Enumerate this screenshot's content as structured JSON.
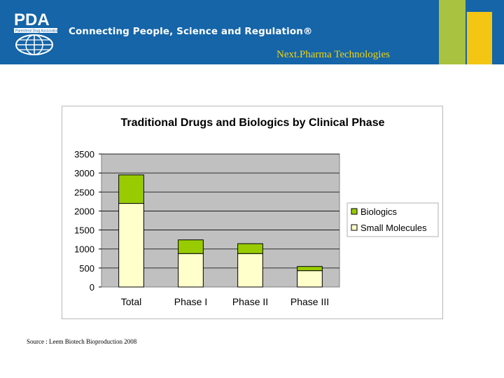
{
  "header": {
    "tagline": "Connecting People, Science and Regulation®",
    "company": "Next.Pharma Technologies",
    "logo_text": "PDA",
    "logo_subtext": "Parenteral Drug Association",
    "colors": {
      "bar": "#1565a8",
      "company_text": "#f4d20a",
      "stripe_green": "#a9c23f",
      "stripe_yellow": "#f3c614"
    }
  },
  "chart_data": {
    "type": "bar",
    "stacked": true,
    "title": "Traditional Drugs and Biologics by Clinical Phase",
    "categories": [
      "Total",
      "Phase I",
      "Phase II",
      "Phase III"
    ],
    "series": [
      {
        "name": "Small Molecules",
        "values": [
          2200,
          880,
          880,
          430
        ],
        "color": "#ffffcc"
      },
      {
        "name": "Biologics",
        "values": [
          750,
          360,
          260,
          110
        ],
        "color": "#99cc00"
      }
    ],
    "legend_order": [
      "Biologics",
      "Small Molecules"
    ],
    "legend_position": "right",
    "ylim": [
      0,
      3500
    ],
    "yticks": [
      0,
      500,
      1000,
      1500,
      2000,
      2500,
      3000,
      3500
    ],
    "xlabel": "",
    "ylabel": "",
    "grid": true,
    "plot_background": "#c0c0c0"
  },
  "footer": {
    "source": "Source : Leem Biotech Bioproduction 2008"
  }
}
